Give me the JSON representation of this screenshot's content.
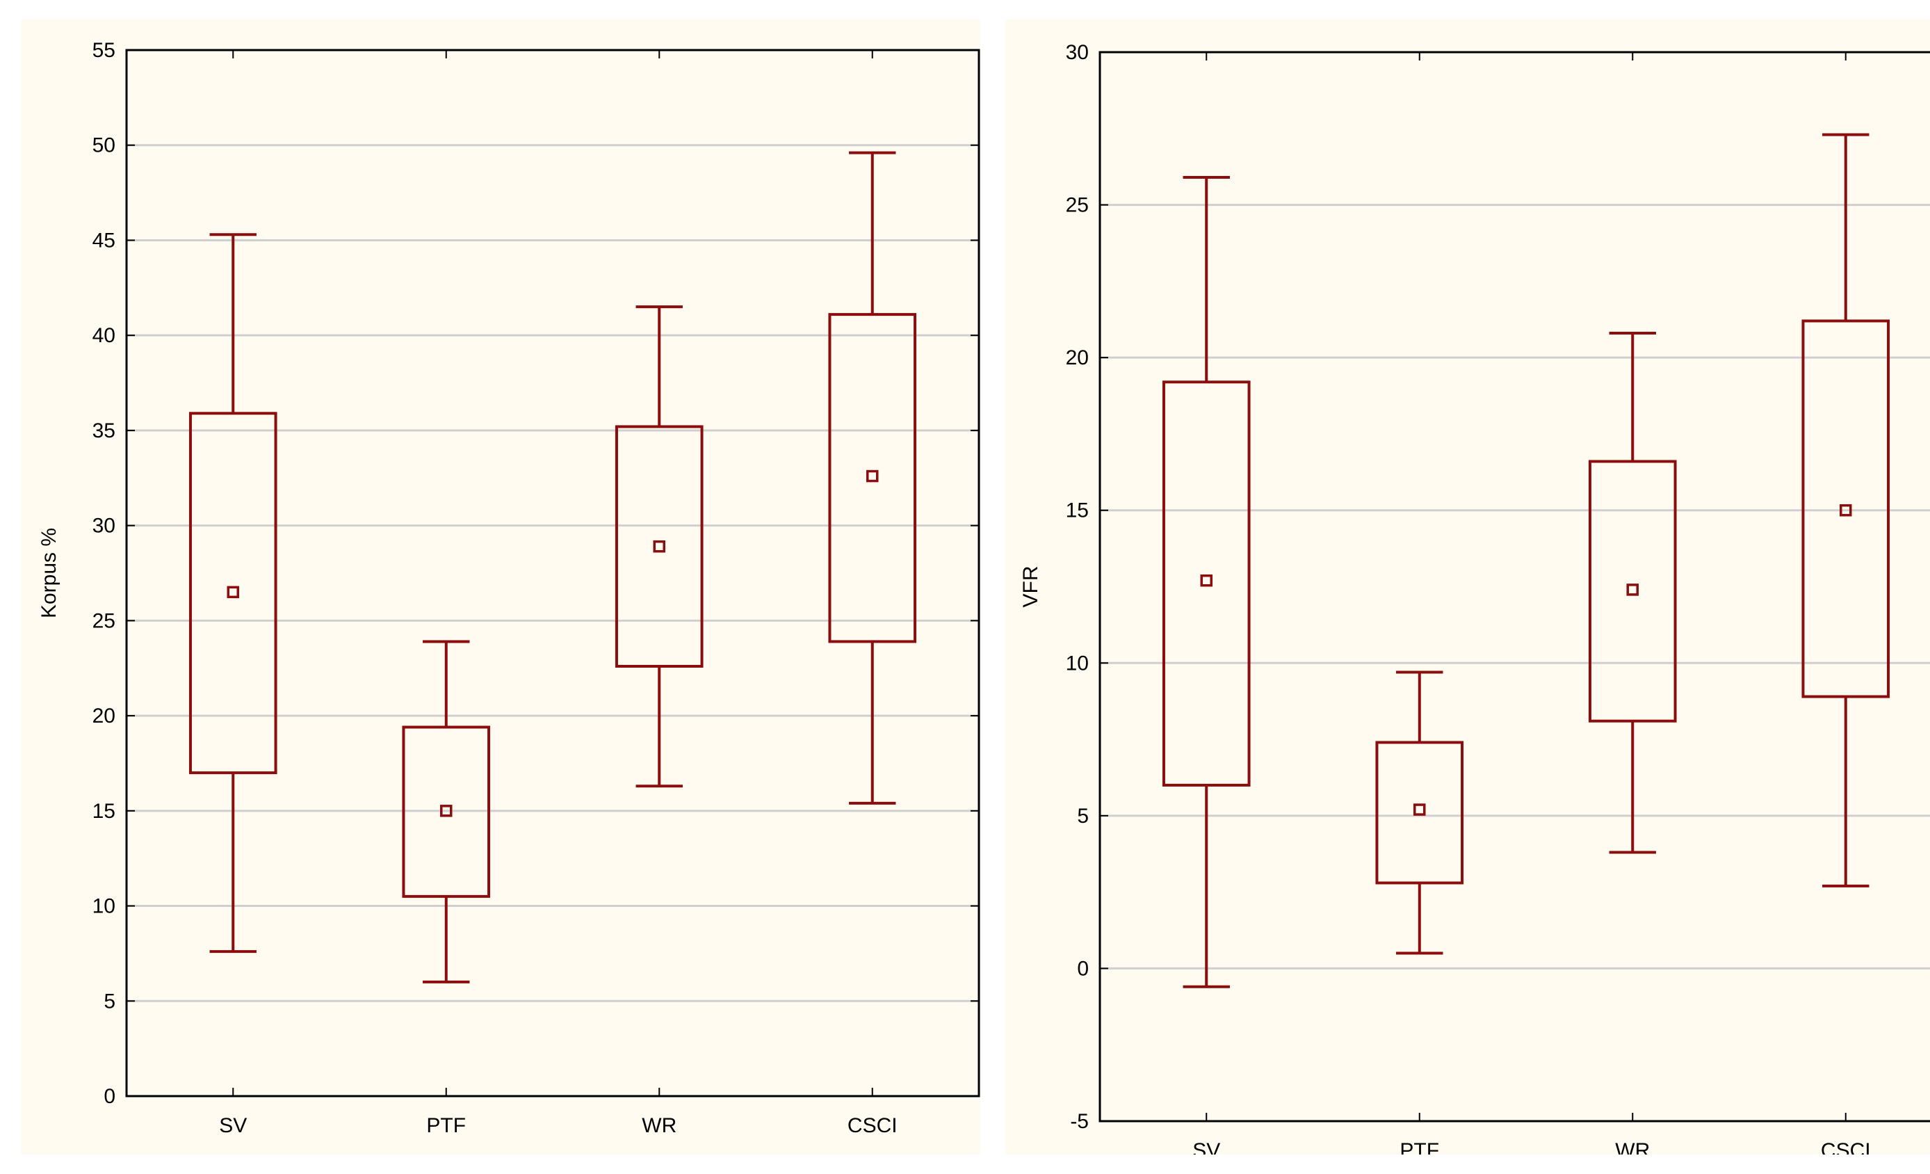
{
  "colors": {
    "box": "#8b0d0d",
    "grid": "#cfcfcf",
    "frame": "#000000",
    "panel_bg": "#fffbf0"
  },
  "chart_data": [
    {
      "type": "box",
      "title": "",
      "xlabel": "",
      "ylabel": "Korpus %",
      "ylim": [
        0,
        55
      ],
      "yticks": [
        0,
        5,
        10,
        15,
        20,
        25,
        30,
        35,
        40,
        45,
        50,
        55
      ],
      "grid": true,
      "categories": [
        "SV",
        "PTF",
        "WR",
        "CSCI"
      ],
      "boxes": [
        {
          "category": "SV",
          "whisker_low": 7.6,
          "q1": 17.0,
          "center": 26.5,
          "q3": 35.9,
          "whisker_high": 45.3
        },
        {
          "category": "PTF",
          "whisker_low": 6.0,
          "q1": 10.5,
          "center": 15.0,
          "q3": 19.4,
          "whisker_high": 23.9
        },
        {
          "category": "WR",
          "whisker_low": 16.3,
          "q1": 22.6,
          "center": 28.9,
          "q3": 35.2,
          "whisker_high": 41.5
        },
        {
          "category": "CSCI",
          "whisker_low": 15.4,
          "q1": 23.9,
          "center": 32.6,
          "q3": 41.1,
          "whisker_high": 49.6
        }
      ]
    },
    {
      "type": "box",
      "title": "",
      "xlabel": "",
      "ylabel": "VFR",
      "ylim": [
        -5,
        30
      ],
      "yticks": [
        -5,
        0,
        5,
        10,
        15,
        20,
        25,
        30
      ],
      "grid": true,
      "categories": [
        "SV",
        "PTF",
        "WR",
        "CSCI"
      ],
      "boxes": [
        {
          "category": "SV",
          "whisker_low": -0.6,
          "q1": 6.0,
          "center": 12.7,
          "q3": 19.2,
          "whisker_high": 25.9
        },
        {
          "category": "PTF",
          "whisker_low": 0.5,
          "q1": 2.8,
          "center": 5.2,
          "q3": 7.4,
          "whisker_high": 9.7
        },
        {
          "category": "WR",
          "whisker_low": 3.8,
          "q1": 8.1,
          "center": 12.4,
          "q3": 16.6,
          "whisker_high": 20.8
        },
        {
          "category": "CSCI",
          "whisker_low": 2.7,
          "q1": 8.9,
          "center": 15.0,
          "q3": 21.2,
          "whisker_high": 27.3
        }
      ]
    }
  ]
}
